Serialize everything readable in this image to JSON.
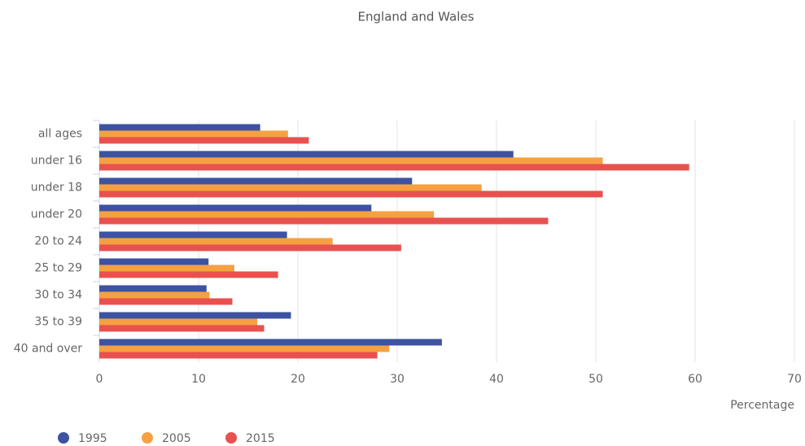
{
  "chart_data": {
    "type": "hbar",
    "title": "England and Wales",
    "xlabel": "Percentage",
    "categories": [
      "all ages",
      "under 16",
      "under 18",
      "under 20",
      "20 to 24",
      "25 to 29",
      "30 to 34",
      "35 to 39",
      "40 and over"
    ],
    "series": [
      {
        "name": "1995",
        "color": "#3d52a1",
        "values": [
          16.2,
          41.7,
          31.5,
          27.4,
          18.9,
          11.0,
          10.8,
          19.3,
          34.5
        ]
      },
      {
        "name": "2005",
        "color": "#f5a142",
        "values": [
          19.0,
          50.7,
          38.5,
          33.7,
          23.5,
          13.6,
          11.1,
          15.9,
          29.2
        ]
      },
      {
        "name": "2015",
        "color": "#e9514f",
        "values": [
          21.1,
          59.4,
          50.7,
          45.2,
          30.4,
          18.0,
          13.4,
          16.6,
          28.0
        ]
      }
    ],
    "xlim": [
      0,
      70
    ],
    "xticks": [
      0,
      10,
      20,
      30,
      40,
      50,
      60,
      70
    ],
    "grid": true,
    "legend": "bottom-left"
  }
}
